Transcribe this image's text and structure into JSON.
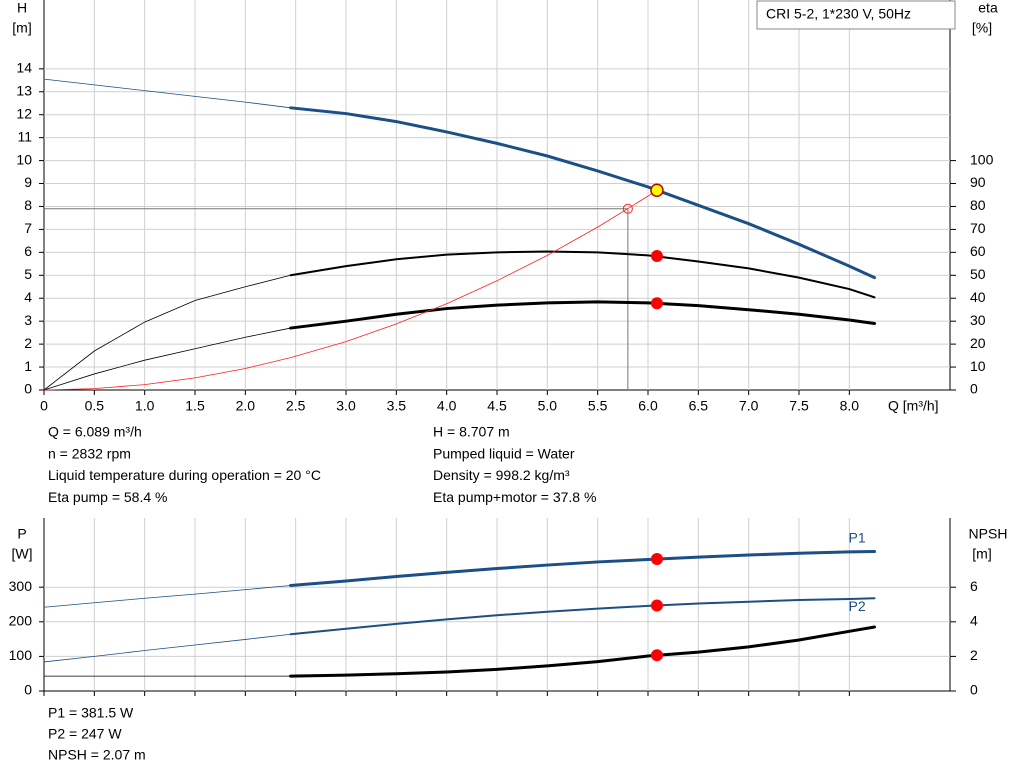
{
  "chart_data": [
    {
      "type": "line",
      "title": "CRI 5-2, 1*230 V, 50Hz",
      "ylabel": [
        "H",
        "[m]"
      ],
      "y2label": [
        "eta",
        "[%]"
      ],
      "xlabel": "Q [m³/h]",
      "xlim": [
        0,
        9
      ],
      "ylim": [
        0,
        17
      ],
      "y2lim": [
        0,
        170
      ],
      "xticks": [
        0,
        0.5,
        {
          "value": 1,
          "label": "1.0"
        },
        1.5,
        {
          "value": 2,
          "label": "2.0"
        },
        2.5,
        {
          "value": 3,
          "label": "3.0"
        },
        3.5,
        {
          "value": 4,
          "label": "4.0"
        },
        4.5,
        {
          "value": 5,
          "label": "5.0"
        },
        5.5,
        {
          "value": 6,
          "label": "6.0"
        },
        6.5,
        {
          "value": 7,
          "label": "7.0"
        },
        7.5,
        {
          "value": 8,
          "label": "8.0"
        }
      ],
      "yticks": [
        0,
        1,
        2,
        3,
        4,
        5,
        6,
        7,
        8,
        9,
        10,
        11,
        12,
        13,
        14
      ],
      "y2ticks": [
        0,
        10,
        20,
        30,
        40,
        50,
        60,
        70,
        80,
        90,
        100
      ],
      "grid": true,
      "x": [
        0,
        0.5,
        1,
        1.5,
        2,
        2.45,
        3,
        3.5,
        4,
        4.5,
        5,
        5.5,
        6,
        6.5,
        7,
        7.5,
        8,
        8.25
      ],
      "series": [
        {
          "color": "#1b4f86",
          "width": 0.8,
          "axis": "y",
          "values": [
            13.55,
            13.3,
            13.05,
            12.8,
            12.55,
            12.3,
            null,
            null,
            null,
            null,
            null,
            null,
            null,
            null,
            null,
            null,
            null,
            null
          ]
        },
        {
          "color": "#1b4f86",
          "width": 3,
          "axis": "y",
          "values": [
            null,
            null,
            null,
            null,
            null,
            12.3,
            12.05,
            11.7,
            11.25,
            10.75,
            10.2,
            9.55,
            8.85,
            8.05,
            7.25,
            6.35,
            5.4,
            4.9
          ]
        },
        {
          "color": "#000000",
          "width": 0.8,
          "axis": "y2",
          "values": [
            0,
            17,
            29.6,
            39,
            45,
            50,
            null,
            null,
            null,
            null,
            null,
            null,
            null,
            null,
            null,
            null,
            null,
            null
          ]
        },
        {
          "color": "#000000",
          "width": 2,
          "axis": "y2",
          "values": [
            null,
            null,
            null,
            null,
            null,
            50,
            54,
            57,
            59,
            60,
            60.4,
            60,
            58.7,
            56,
            53,
            49,
            44,
            40.4
          ]
        },
        {
          "color": "#000000",
          "width": 0.8,
          "axis": "y2",
          "values": [
            0,
            7,
            13,
            18,
            23,
            27,
            null,
            null,
            null,
            null,
            null,
            null,
            null,
            null,
            null,
            null,
            null,
            null
          ]
        },
        {
          "color": "#000000",
          "width": 3,
          "axis": "y2",
          "values": [
            null,
            null,
            null,
            null,
            null,
            27,
            30,
            33,
            35.5,
            37,
            38,
            38.4,
            38,
            36.8,
            35,
            33,
            30.5,
            29
          ]
        },
        {
          "color": "#ff2020",
          "width": 0.8,
          "axis": "y",
          "x": [
            0,
            0.5,
            1,
            1.5,
            2,
            2.45,
            3,
            3.5,
            4,
            4.5,
            5,
            5.5,
            6,
            6.089
          ],
          "values": [
            0,
            0.059,
            0.235,
            0.528,
            0.939,
            1.41,
            2.11,
            2.88,
            3.76,
            4.76,
            5.87,
            7.1,
            8.45,
            8.707
          ]
        }
      ],
      "reference_point": {
        "x": 5.8,
        "y": 7.9,
        "color": "#ff2020"
      },
      "points": [
        {
          "x": 6.089,
          "y": 8.707,
          "axis": "y",
          "color": "#ffff00"
        },
        {
          "x": 6.089,
          "y": 58.4,
          "axis": "y2",
          "color": "#ff0000"
        },
        {
          "x": 6.089,
          "y": 37.8,
          "axis": "y2",
          "color": "#ff0000"
        }
      ],
      "annotations": [
        [
          "Q = 6.089 m³/h",
          "n = 2832 rpm",
          "Liquid temperature during operation = 20 °C",
          "Eta pump = 58.4 %"
        ],
        [
          "H = 8.707 m",
          "Pumped liquid = Water",
          "Density = 998.2 kg/m³",
          "Eta pump+motor = 37.8 %"
        ]
      ]
    },
    {
      "type": "line",
      "ylabel": [
        "P",
        "[W]"
      ],
      "y2label": [
        "NPSH",
        "[m]"
      ],
      "xlim": [
        0,
        9
      ],
      "ylim": [
        0,
        500
      ],
      "y2lim": [
        0,
        10
      ],
      "xgrid": [
        0,
        0.5,
        1,
        1.5,
        2,
        2.5,
        3,
        3.5,
        4,
        4.5,
        5,
        5.5,
        6,
        6.5,
        7,
        7.5,
        8
      ],
      "yticks": [
        0,
        100,
        200,
        300
      ],
      "y2ticks": [
        0,
        2,
        4,
        6
      ],
      "grid": true,
      "x": [
        0,
        0.5,
        1,
        1.5,
        2,
        2.45,
        3,
        3.5,
        4,
        4.5,
        5,
        5.5,
        6,
        6.5,
        7,
        7.5,
        8,
        8.25
      ],
      "series": [
        {
          "color": "#1b4f86",
          "width": 0.8,
          "axis": "y",
          "values": [
            242,
            255,
            268,
            280,
            293,
            305,
            null,
            null,
            null,
            null,
            null,
            null,
            null,
            null,
            null,
            null,
            null,
            null
          ]
        },
        {
          "name": "P1",
          "label_side": "above",
          "color": "#1b4f86",
          "width": 3,
          "axis": "y",
          "values": [
            null,
            null,
            null,
            null,
            null,
            305,
            318,
            331,
            343,
            354,
            364,
            373,
            380,
            387,
            393,
            398,
            402,
            403
          ]
        },
        {
          "color": "#1b4f86",
          "width": 0.8,
          "axis": "y",
          "values": [
            84,
            100,
            117,
            133,
            149,
            164,
            null,
            null,
            null,
            null,
            null,
            null,
            null,
            null,
            null,
            null,
            null,
            null
          ]
        },
        {
          "name": "P2",
          "label_side": "below",
          "color": "#1b4f86",
          "width": 2,
          "axis": "y",
          "values": [
            null,
            null,
            null,
            null,
            null,
            164,
            180,
            194,
            207,
            219,
            229,
            238,
            246,
            253,
            258,
            263,
            266,
            268
          ]
        },
        {
          "color": "#000000",
          "width": 0.8,
          "axis": "y2",
          "values": [
            0.86,
            0.86,
            0.86,
            0.86,
            0.86,
            0.86,
            null,
            null,
            null,
            null,
            null,
            null,
            null,
            null,
            null,
            null,
            null,
            null
          ]
        },
        {
          "color": "#000000",
          "width": 3,
          "axis": "y2",
          "values": [
            null,
            null,
            null,
            null,
            null,
            0.86,
            0.92,
            1,
            1.1,
            1.25,
            1.45,
            1.7,
            2.02,
            2.25,
            2.55,
            2.95,
            3.45,
            3.7
          ]
        }
      ],
      "points": [
        {
          "x": 6.089,
          "y": 381.5,
          "axis": "y",
          "color": "#ff0000"
        },
        {
          "x": 6.089,
          "y": 247,
          "axis": "y",
          "color": "#ff0000"
        },
        {
          "x": 6.089,
          "y": 2.07,
          "axis": "y2",
          "color": "#ff0000"
        }
      ],
      "annotations": [
        [
          "P1 = 381.5 W",
          "P2 = 247 W",
          "NPSH = 2.07 m"
        ]
      ]
    }
  ]
}
